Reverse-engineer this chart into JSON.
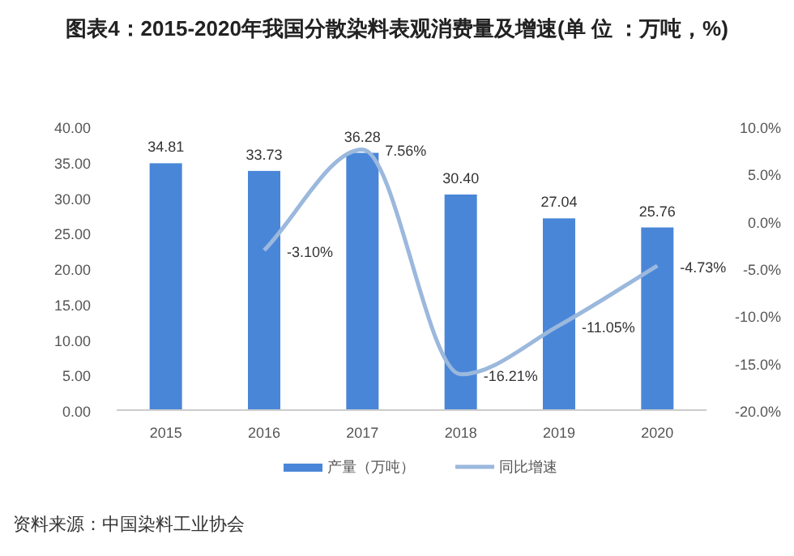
{
  "chart_data": {
    "type": "bar",
    "title": "图表4：2015-2020年我国分散染料表观消费量及增速(单 位 ：万吨，%)",
    "categories": [
      "2015",
      "2016",
      "2017",
      "2018",
      "2019",
      "2020"
    ],
    "series": [
      {
        "name": "产量（万吨）",
        "color": "#4a86d8",
        "values": [
          34.81,
          33.73,
          36.28,
          30.4,
          27.04,
          25.76
        ],
        "value_labels": [
          "34.81",
          "33.73",
          "36.28",
          "30.40",
          "27.04",
          "25.76"
        ]
      },
      {
        "name": "同比增速",
        "type": "line",
        "axis": "y2",
        "color": "#9bb8dd",
        "values": [
          null,
          -3.1,
          7.56,
          -16.21,
          -11.05,
          -4.73
        ],
        "value_labels": [
          null,
          "-3.10%",
          "7.56%",
          "-16.21%",
          "-11.05%",
          "-4.73%"
        ]
      }
    ],
    "ylim": [
      0,
      40
    ],
    "yticks": [
      {
        "value": 0,
        "label": "0.00"
      },
      {
        "value": 5,
        "label": "5.00"
      },
      {
        "value": 10,
        "label": "10.00"
      },
      {
        "value": 15,
        "label": "15.00"
      },
      {
        "value": 20,
        "label": "20.00"
      },
      {
        "value": 25,
        "label": "25.00"
      },
      {
        "value": 30,
        "label": "30.00"
      },
      {
        "value": 35,
        "label": "35.00"
      },
      {
        "value": 40,
        "label": "40.00"
      }
    ],
    "y2lim": [
      -20,
      10
    ],
    "y2ticks": [
      {
        "value": -20,
        "label": "-20.0%"
      },
      {
        "value": -15,
        "label": "-15.0%"
      },
      {
        "value": -10,
        "label": "-10.0%"
      },
      {
        "value": -5,
        "label": "-5.0%"
      },
      {
        "value": 0,
        "label": "0.0%"
      },
      {
        "value": 5,
        "label": "5.0%"
      },
      {
        "value": 10,
        "label": "10.0%"
      }
    ],
    "legend": "bottom",
    "annotations": [
      "资料来源：中国染料工业协会"
    ]
  }
}
